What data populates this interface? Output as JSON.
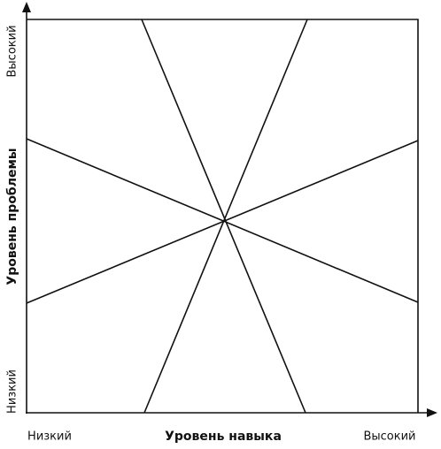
{
  "y_axis": {
    "label": "Уровень проблемы",
    "high": "Высокий",
    "low": "Низкий"
  },
  "x_axis": {
    "label": "Уровень навыка",
    "low": "Низкий",
    "high": "Высокий"
  }
}
